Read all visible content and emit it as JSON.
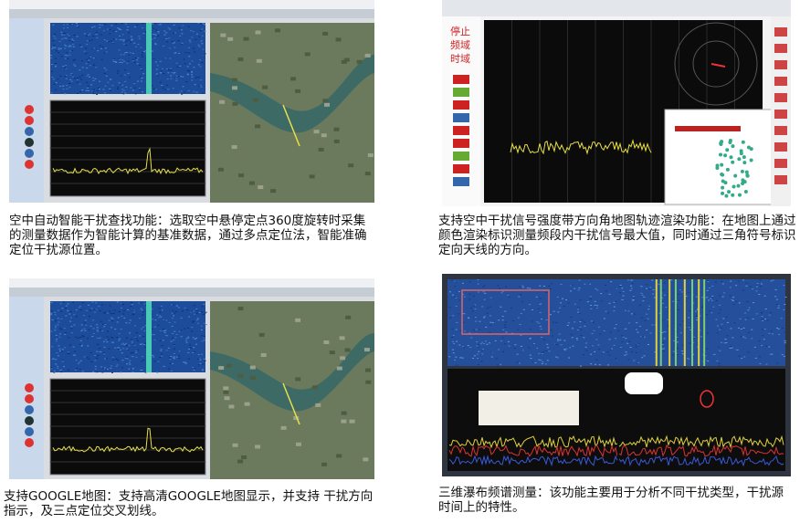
{
  "panels": [
    {
      "caption": "空中自动智能干扰查找功能：选取空中悬停定点360度旋转时采集的测量数据作为智能计算的基准数据，通过多点定位法，智能准确定位干扰源位置。"
    },
    {
      "caption": "支持空中干扰信号强度带方向角地图轨迹渲染功能：在地图上通过颜色渲染标识测量频段内干扰信号最大值，同时通过三角符号标识定向天线的方向。",
      "buttons": [
        "停止",
        "频域",
        "时域"
      ]
    },
    {
      "caption": "支持GOOGLE地图：支持高清GOOGLE地图显示，并支持 干扰方向指示，及三点定位交叉划线。"
    },
    {
      "caption": "三维瀑布频谱测量：该功能主要用于分析不同干扰类型，干扰源时间上的特性。"
    }
  ]
}
